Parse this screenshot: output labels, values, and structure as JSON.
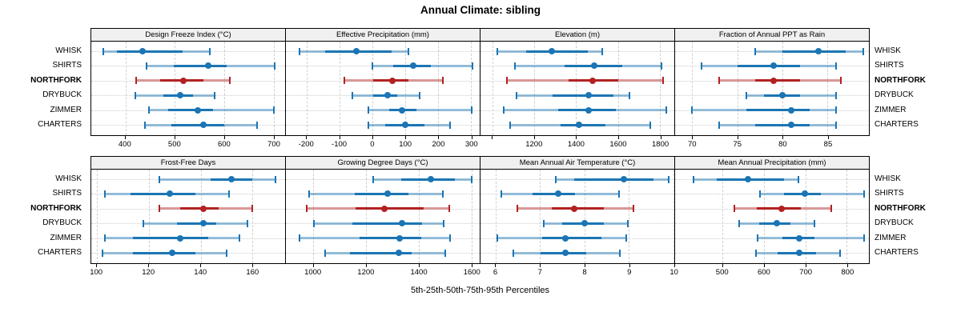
{
  "title": "Annual Climate: sibling",
  "xlabel": "5th-25th-50th-75th-95th Percentiles",
  "sites": [
    "WHISK",
    "SHIRTS",
    "NORTHFORK",
    "DRYBUCK",
    "ZIMMER",
    "CHARTERS"
  ],
  "highlight_site": "NORTHFORK",
  "colors": {
    "blue": "#1b75b4",
    "blue_light": "rgba(27,117,180,0.45)",
    "red": "#b22222",
    "red_light": "rgba(178,34,34,0.45)",
    "header_bg": "#f0f0f0",
    "grid": "#cccccc",
    "border": "#000000"
  },
  "chart_data": {
    "type": "scatter",
    "subtype": "percentile-interval-dotplot",
    "percentile_levels": [
      5,
      25,
      50,
      75,
      95
    ],
    "legend_note": "dot = 50th percentile, thick bar = 25th-75th, thin bar with caps = 5th-95th",
    "grid": "on",
    "rows_of_panels": 2,
    "panels": [
      {
        "title": "Design Freeze Index (°C)",
        "xlim": [
          331,
          723
        ],
        "ticks": [
          400,
          500,
          600,
          700
        ],
        "tick_labels": [
          "400",
          "500",
          "600",
          "700"
        ],
        "values": [
          [
            355,
            383,
            434,
            516,
            570
          ],
          [
            442,
            498,
            568,
            604,
            702
          ],
          [
            421,
            471,
            518,
            557,
            611
          ],
          [
            420,
            477,
            511,
            536,
            581
          ],
          [
            448,
            487,
            547,
            577,
            700
          ],
          [
            439,
            493,
            557,
            600,
            667
          ]
        ]
      },
      {
        "title": "Effective Precipitation (mm)",
        "xlim": [
          -263,
          326
        ],
        "ticks": [
          -200,
          -100,
          0,
          100,
          200,
          300
        ],
        "tick_labels": [
          "-200",
          "-100",
          "0",
          "100",
          "200",
          "300"
        ],
        "values": [
          [
            -222,
            -144,
            -49,
            58,
            110
          ],
          [
            0,
            64,
            125,
            178,
            303
          ],
          [
            -86,
            2,
            60,
            109,
            215
          ],
          [
            -61,
            2,
            45,
            76,
            143
          ],
          [
            -12,
            51,
            91,
            133,
            302
          ],
          [
            -12,
            39,
            99,
            158,
            237
          ]
        ]
      },
      {
        "title": "Elevation (m)",
        "xlim": [
          944,
          1869
        ],
        "ticks": [
          1000,
          1200,
          1400,
          1600,
          1800
        ],
        "tick_labels": [
          "",
          "1200",
          "1400",
          "1600",
          "1800"
        ],
        "values": [
          [
            1025,
            1162,
            1283,
            1455,
            1525
          ],
          [
            1107,
            1346,
            1488,
            1622,
            1806
          ],
          [
            1069,
            1365,
            1479,
            1600,
            1815
          ],
          [
            1115,
            1289,
            1460,
            1577,
            1655
          ],
          [
            1054,
            1314,
            1460,
            1590,
            1830
          ],
          [
            1086,
            1327,
            1416,
            1540,
            1754
          ]
        ]
      },
      {
        "title": "Fraction of Annual PPT as Rain",
        "xlim": [
          68.1,
          89.6
        ],
        "ticks": [
          70,
          75,
          80,
          85
        ],
        "tick_labels": [
          "70",
          "75",
          "80",
          "85"
        ],
        "values": [
          [
            77,
            80,
            84,
            87,
            89
          ],
          [
            71,
            75,
            79,
            82,
            86
          ],
          [
            73,
            77,
            79,
            82,
            86.5
          ],
          [
            76,
            78,
            80,
            82,
            86
          ],
          [
            70,
            76,
            81,
            83,
            86
          ],
          [
            73,
            77,
            81,
            83,
            86
          ]
        ]
      },
      {
        "title": "Frost-Free Days",
        "xlim": [
          97.8,
          172.6
        ],
        "ticks": [
          100,
          120,
          140,
          160
        ],
        "tick_labels": [
          "100",
          "120",
          "140",
          "160"
        ],
        "values": [
          [
            124,
            144,
            152,
            160,
            169
          ],
          [
            103,
            113,
            128,
            138,
            151
          ],
          [
            124,
            132,
            141,
            147,
            160
          ],
          [
            118,
            131,
            141,
            146,
            158
          ],
          [
            103,
            114,
            132,
            143,
            155
          ],
          [
            102,
            114,
            129,
            138,
            150
          ]
        ]
      },
      {
        "title": "Growing Degree Days (°C)",
        "xlim": [
          896,
          1631
        ],
        "ticks": [
          1000,
          1200,
          1400,
          1600
        ],
        "tick_labels": [
          "1000",
          "1200",
          "1400",
          "1600"
        ],
        "values": [
          [
            1226,
            1333,
            1445,
            1536,
            1600
          ],
          [
            983,
            1157,
            1282,
            1361,
            1492
          ],
          [
            976,
            1159,
            1269,
            1418,
            1516
          ],
          [
            1003,
            1148,
            1335,
            1412,
            1493
          ],
          [
            949,
            1176,
            1326,
            1409,
            1519
          ],
          [
            1046,
            1140,
            1323,
            1374,
            1500
          ]
        ]
      },
      {
        "title": "Mean Annual Air Temperature (°C)",
        "xlim": [
          5.66,
          10.02
        ],
        "ticks": [
          6,
          7,
          8,
          9,
          10
        ],
        "tick_labels": [
          "6",
          "7",
          "8",
          "9",
          "10"
        ],
        "values": [
          [
            7.36,
            7.77,
            8.89,
            9.55,
            9.89
          ],
          [
            6.13,
            6.84,
            7.4,
            7.78,
            8.78
          ],
          [
            6.48,
            7.26,
            7.77,
            8.43,
            9.1
          ],
          [
            7.08,
            7.5,
            8.01,
            8.43,
            8.98
          ],
          [
            6.04,
            7.05,
            7.57,
            8.38,
            8.93
          ],
          [
            6.39,
            7.02,
            7.57,
            8.04,
            8.8
          ]
        ]
      },
      {
        "title": "Mean Annual Precipitation (mm)",
        "xlim": [
          387,
          853
        ],
        "ticks": [
          500,
          600,
          700,
          800
        ],
        "tick_labels": [
          "500",
          "600",
          "700",
          "800"
        ],
        "values": [
          [
            432,
            487,
            563,
            649,
            683
          ],
          [
            592,
            649,
            699,
            738,
            842
          ],
          [
            530,
            584,
            643,
            689,
            762
          ],
          [
            541,
            589,
            632,
            665,
            722
          ],
          [
            586,
            645,
            685,
            722,
            841
          ],
          [
            581,
            633,
            685,
            725,
            784
          ]
        ]
      }
    ]
  }
}
